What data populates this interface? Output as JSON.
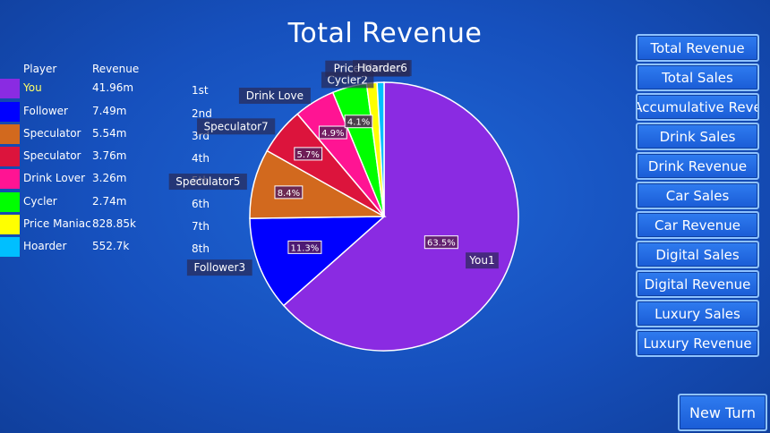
{
  "chart_data": {
    "type": "pie",
    "title": "Total Revenue",
    "slices": [
      {
        "name": "You",
        "slice_label": "You1",
        "value": 41.96,
        "display": "41.96m",
        "percent_label": "63.5%",
        "rank": "1st",
        "color": "#8a2be2"
      },
      {
        "name": "Follower",
        "slice_label": "Follower3",
        "value": 7.49,
        "display": "7.49m",
        "percent_label": "11.3%",
        "rank": "2nd",
        "color": "#0000ff"
      },
      {
        "name": "Speculator",
        "slice_label": "Speculator5",
        "value": 5.54,
        "display": "5.54m",
        "percent_label": "8.4%",
        "rank": "3rd",
        "color": "#d2691e"
      },
      {
        "name": "Speculator",
        "slice_label": "Speculator7",
        "value": 3.76,
        "display": "3.76m",
        "percent_label": "5.7%",
        "rank": "4th",
        "color": "#dc143c"
      },
      {
        "name": "Drink Lover",
        "slice_label": "Drink Love",
        "value": 3.26,
        "display": "3.26m",
        "percent_label": "4.9%",
        "rank": "5th",
        "color": "#ff1493"
      },
      {
        "name": "Cycler",
        "slice_label": "Cycler2",
        "value": 2.74,
        "display": "2.74m",
        "percent_label": "4.1%",
        "rank": "6th",
        "color": "#00ff00"
      },
      {
        "name": "Price Maniac",
        "slice_label": "Price Maniac",
        "value": 0.82885,
        "display": "828.85k",
        "percent_label": "",
        "rank": "7th",
        "color": "#ffff00"
      },
      {
        "name": "Hoarder",
        "slice_label": "Hoarder6",
        "value": 0.5527,
        "display": "552.7k",
        "percent_label": "",
        "rank": "8th",
        "color": "#00bfff"
      }
    ]
  },
  "legend": {
    "player_header": "Player",
    "revenue_header": "Revenue",
    "highlight_color": "#ffff66"
  },
  "menu": {
    "items": [
      "Total Revenue",
      "Total Sales",
      "Accumulative Reve",
      "Drink Sales",
      "Drink Revenue",
      "Car Sales",
      "Car Revenue",
      "Digital Sales",
      "Digital Revenue",
      "Luxury Sales",
      "Luxury Revenue"
    ]
  },
  "new_turn_label": "New Turn"
}
